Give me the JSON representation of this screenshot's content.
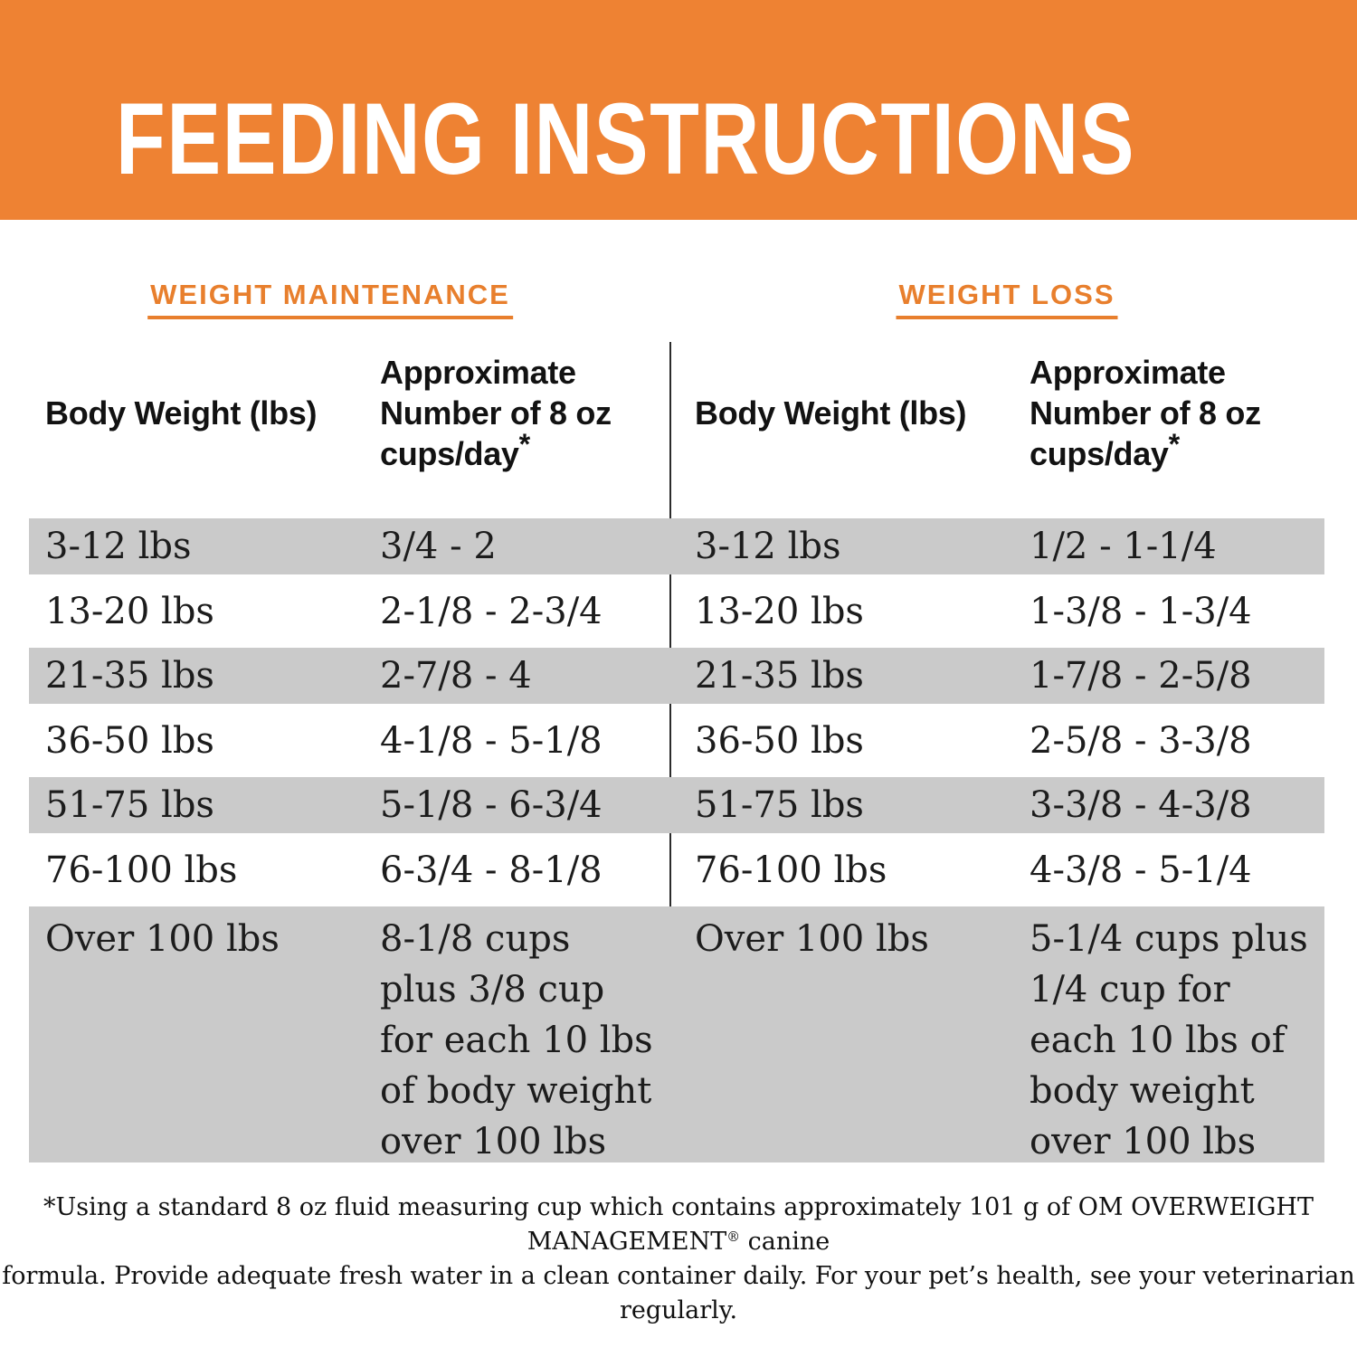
{
  "header": {
    "title": "FEEDING INSTRUCTIONS"
  },
  "columns": {
    "weight_label": "Body Weight (lbs)",
    "cups_lines": [
      "Approximate",
      "Number of 8 oz",
      "cups/day"
    ],
    "footnote_marker": "*"
  },
  "tables": [
    {
      "heading": "WEIGHT MAINTENANCE",
      "rows": [
        {
          "weight": "3-12 lbs",
          "cups": "3/4 - 2"
        },
        {
          "weight": "13-20 lbs",
          "cups": "2-1/8 - 2-3/4"
        },
        {
          "weight": "21-35 lbs",
          "cups": "2-7/8 - 4"
        },
        {
          "weight": "36-50 lbs",
          "cups": "4-1/8 - 5-1/8"
        },
        {
          "weight": "51-75 lbs",
          "cups": "5-1/8 - 6-3/4"
        },
        {
          "weight": "76-100 lbs",
          "cups": "6-3/4 - 8-1/8"
        },
        {
          "weight": "Over 100 lbs",
          "cups": "8-1/8 cups plus 3/8 cup for each 10 lbs of body weight over 100 lbs"
        }
      ]
    },
    {
      "heading": "WEIGHT LOSS",
      "rows": [
        {
          "weight": "3-12 lbs",
          "cups": "1/2 - 1-1/4"
        },
        {
          "weight": "13-20 lbs",
          "cups": "1-3/8 - 1-3/4"
        },
        {
          "weight": "21-35 lbs",
          "cups": "1-7/8 - 2-5/8"
        },
        {
          "weight": "36-50 lbs",
          "cups": "2-5/8 - 3-3/8"
        },
        {
          "weight": "51-75 lbs",
          "cups": "3-3/8 - 4-3/8"
        },
        {
          "weight": "76-100 lbs",
          "cups": "4-3/8 - 5-1/4"
        },
        {
          "weight": "Over 100 lbs",
          "cups": "5-1/4 cups plus 1/4 cup for each 10 lbs of body weight over 100 lbs"
        }
      ]
    }
  ],
  "footnote": {
    "line1_before_reg": "*Using a standard 8 oz fluid measuring cup which contains approximately 101 g of OM OVERWEIGHT MANAGEMENT",
    "reg_mark": "®",
    "line1_after_reg": " canine",
    "line2": "formula. Provide adequate fresh water in a clean container daily. For your pet’s health, see your veterinarian regularly."
  },
  "colors": {
    "band_orange": "#EE8233",
    "heading_orange": "#E87F2D",
    "row_gray": "#CACACA"
  }
}
